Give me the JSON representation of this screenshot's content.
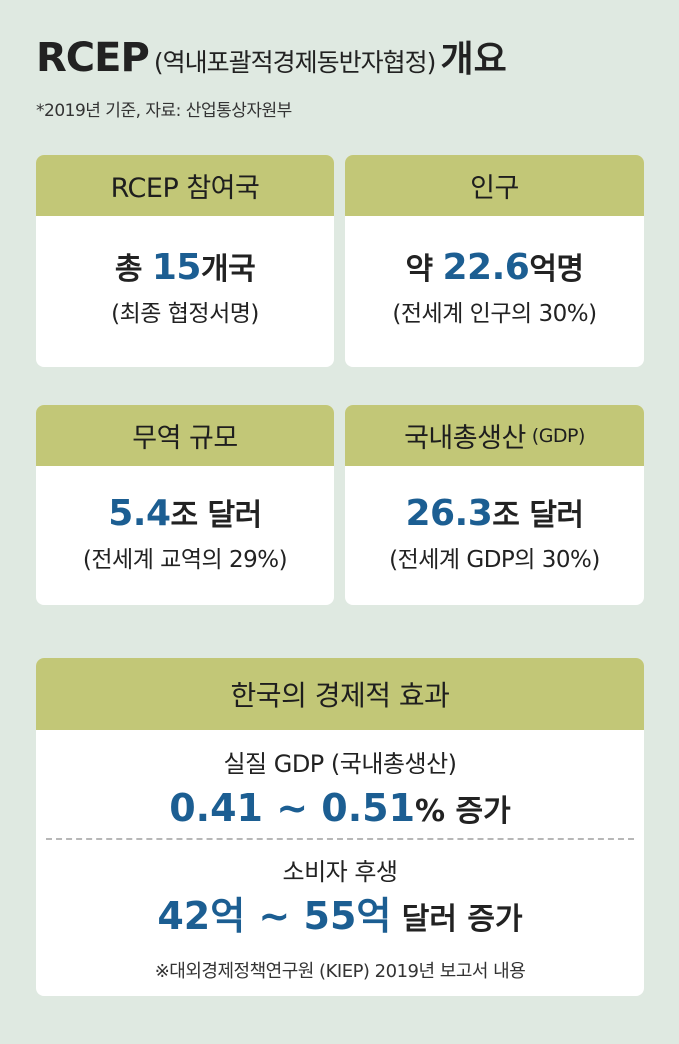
{
  "title": {
    "main": "RCEP",
    "paren": "(역내포괄적경제동반자협정)",
    "end": "개요"
  },
  "subtitle": "*2019년 기준, 자료: 산업통상자원부",
  "cards": {
    "members": {
      "head": "RCEP 참여국",
      "prefix": "총 ",
      "value": "15",
      "suffix": "개국",
      "detail": "(최종 협정서명)"
    },
    "population": {
      "head": "인구",
      "prefix": "약 ",
      "value": "22.6",
      "suffix": "억명",
      "detail": "(전세계 인구의 30%)"
    },
    "trade": {
      "head": "무역 규모",
      "prefix": "",
      "value": "5.4",
      "suffix": "조 달러",
      "detail": "(전세계 교역의 29%)"
    },
    "gdp": {
      "head": "국내총생산",
      "head_small": "(GDP)",
      "prefix": "",
      "value": "26.3",
      "suffix": "조 달러",
      "detail": "(전세계 GDP의 30%)"
    }
  },
  "effects": {
    "head": "한국의 경제적 효과",
    "real_gdp": {
      "label": "실질 GDP (국내총생산)",
      "value": "0.41 ~ 0.51",
      "suffix": "% 증가"
    },
    "consumer": {
      "label": "소비자 후생",
      "value": "42억 ~ 55억",
      "suffix": " 달러 증가"
    },
    "note": "※대외경제정책연구원 (KIEP) 2019년 보고서 내용"
  }
}
